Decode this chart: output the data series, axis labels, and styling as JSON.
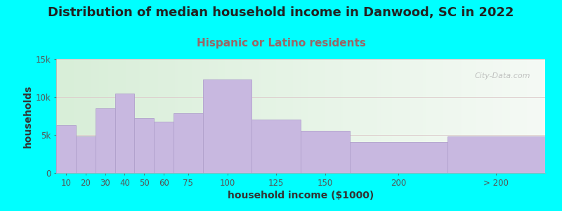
{
  "title": "Distribution of median household income in Danwood, SC in 2022",
  "subtitle": "Hispanic or Latino residents",
  "xlabel": "household income ($1000)",
  "ylabel": "households",
  "background_color": "#00FFFF",
  "plot_bg_left": "#d8eed8",
  "plot_bg_right": "#f5faf5",
  "bar_color": "#c8b8e0",
  "bar_edge_color": "#b0a0cc",
  "categories": [
    "10",
    "20",
    "30",
    "40",
    "50",
    "60",
    "75",
    "100",
    "125",
    "150",
    "200",
    "> 200"
  ],
  "values": [
    6300,
    4800,
    8500,
    10500,
    7200,
    6800,
    7900,
    12300,
    7000,
    5600,
    4100,
    4800
  ],
  "left_edges": [
    0,
    10,
    20,
    30,
    40,
    50,
    60,
    75,
    100,
    125,
    150,
    200
  ],
  "widths": [
    10,
    10,
    10,
    10,
    10,
    10,
    15,
    25,
    25,
    25,
    50,
    50
  ],
  "xlim": [
    0,
    250
  ],
  "ylim": [
    0,
    15000
  ],
  "yticks": [
    0,
    5000,
    10000,
    15000
  ],
  "ytick_labels": [
    "0",
    "5k",
    "10k",
    "15k"
  ],
  "xtick_positions": [
    5,
    15,
    25,
    35,
    45,
    55,
    67.5,
    87.5,
    112.5,
    137.5,
    175,
    225
  ],
  "xtick_labels": [
    "10",
    "20",
    "30",
    "40",
    "50",
    "60",
    "75",
    "100",
    "125",
    "150",
    "200",
    "> 200"
  ],
  "title_fontsize": 13,
  "subtitle_fontsize": 11,
  "subtitle_color": "#996666",
  "axis_label_fontsize": 10,
  "tick_fontsize": 8.5,
  "grid_color": "#ddcccc",
  "watermark": "City-Data.com"
}
